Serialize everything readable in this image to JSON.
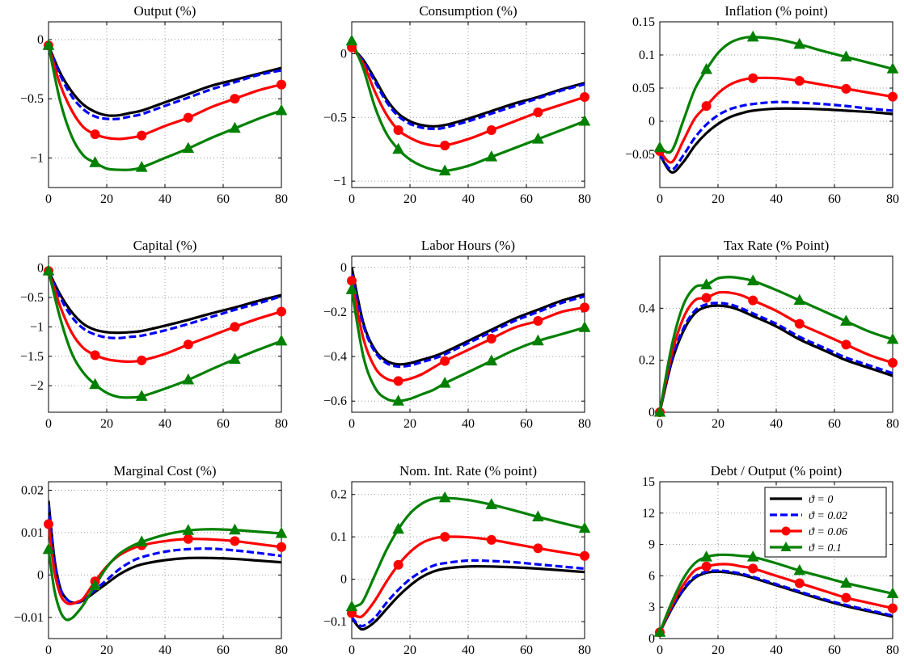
{
  "colors": {
    "s0": "#000000",
    "s1": "#0000ff",
    "s2": "#ff0000",
    "s3": "#008000"
  },
  "legend": [
    "ϑ = 0",
    "ϑ = 0.02",
    "ϑ = 0.06",
    "ϑ = 0.1"
  ],
  "chart_data": [
    {
      "type": "line",
      "title": "Output (%)",
      "xlim": [
        0,
        80
      ],
      "ylim": [
        -1.25,
        0.15
      ],
      "xticks": [
        0,
        20,
        40,
        60,
        80
      ],
      "yticks": [
        0,
        -0.5,
        -1
      ],
      "yticklabels": [
        "0",
        "−0.5",
        "−1"
      ],
      "x": [
        0,
        4,
        8,
        12,
        16,
        20,
        24,
        28,
        32,
        40,
        48,
        56,
        64,
        72,
        80
      ],
      "series": [
        {
          "name": "ϑ = 0",
          "values": [
            -0.05,
            -0.28,
            -0.44,
            -0.55,
            -0.61,
            -0.64,
            -0.64,
            -0.62,
            -0.6,
            -0.53,
            -0.46,
            -0.39,
            -0.34,
            -0.29,
            -0.24
          ]
        },
        {
          "name": "ϑ = 0.02",
          "values": [
            -0.05,
            -0.3,
            -0.48,
            -0.59,
            -0.65,
            -0.67,
            -0.67,
            -0.65,
            -0.63,
            -0.56,
            -0.49,
            -0.42,
            -0.36,
            -0.3,
            -0.26
          ]
        },
        {
          "name": "ϑ = 0.06",
          "values": [
            -0.05,
            -0.38,
            -0.6,
            -0.74,
            -0.8,
            -0.83,
            -0.84,
            -0.83,
            -0.81,
            -0.73,
            -0.66,
            -0.57,
            -0.5,
            -0.43,
            -0.38
          ]
        },
        {
          "name": "ϑ = 0.1",
          "values": [
            -0.05,
            -0.52,
            -0.82,
            -0.98,
            -1.04,
            -1.09,
            -1.1,
            -1.1,
            -1.08,
            -1.0,
            -0.92,
            -0.83,
            -0.75,
            -0.67,
            -0.6
          ]
        }
      ]
    },
    {
      "type": "line",
      "title": "Consumption (%)",
      "xlim": [
        0,
        80
      ],
      "ylim": [
        -1.05,
        0.25
      ],
      "xticks": [
        0,
        20,
        40,
        60,
        80
      ],
      "yticks": [
        0,
        -0.5,
        -1
      ],
      "yticklabels": [
        "0",
        "−0.5",
        "−1"
      ],
      "x": [
        0,
        4,
        8,
        12,
        16,
        20,
        24,
        28,
        32,
        40,
        48,
        56,
        64,
        72,
        80
      ],
      "series": [
        {
          "name": "ϑ = 0",
          "values": [
            0.05,
            -0.05,
            -0.2,
            -0.36,
            -0.47,
            -0.53,
            -0.56,
            -0.57,
            -0.56,
            -0.51,
            -0.45,
            -0.39,
            -0.34,
            -0.28,
            -0.23
          ]
        },
        {
          "name": "ϑ = 0.02",
          "values": [
            0.05,
            -0.06,
            -0.22,
            -0.38,
            -0.49,
            -0.55,
            -0.58,
            -0.59,
            -0.58,
            -0.53,
            -0.47,
            -0.41,
            -0.35,
            -0.29,
            -0.24
          ]
        },
        {
          "name": "ϑ = 0.06",
          "values": [
            0.05,
            -0.08,
            -0.3,
            -0.48,
            -0.6,
            -0.66,
            -0.7,
            -0.72,
            -0.72,
            -0.67,
            -0.6,
            -0.53,
            -0.46,
            -0.4,
            -0.34
          ]
        },
        {
          "name": "ϑ = 0.1",
          "values": [
            0.1,
            -0.12,
            -0.42,
            -0.63,
            -0.75,
            -0.83,
            -0.88,
            -0.91,
            -0.92,
            -0.88,
            -0.81,
            -0.74,
            -0.67,
            -0.6,
            -0.53
          ]
        }
      ]
    },
    {
      "type": "line",
      "title": "Inflation (% point)",
      "xlim": [
        0,
        80
      ],
      "ylim": [
        -0.1,
        0.15
      ],
      "xticks": [
        0,
        20,
        40,
        60,
        80
      ],
      "yticks": [
        0.15,
        0.1,
        0.05,
        0,
        -0.05
      ],
      "yticklabels": [
        "0.15",
        "0.1",
        "0.05",
        "0",
        "−0.05"
      ],
      "x": [
        0,
        4,
        8,
        12,
        16,
        20,
        24,
        28,
        32,
        40,
        48,
        56,
        64,
        72,
        80
      ],
      "series": [
        {
          "name": "ϑ = 0",
          "values": [
            -0.05,
            -0.077,
            -0.062,
            -0.037,
            -0.018,
            -0.004,
            0.006,
            0.012,
            0.016,
            0.019,
            0.019,
            0.018,
            0.016,
            0.014,
            0.011
          ]
        },
        {
          "name": "ϑ = 0.02",
          "values": [
            -0.05,
            -0.073,
            -0.052,
            -0.025,
            -0.005,
            0.009,
            0.018,
            0.023,
            0.026,
            0.029,
            0.028,
            0.026,
            0.023,
            0.019,
            0.016
          ]
        },
        {
          "name": "ϑ = 0.06",
          "values": [
            -0.045,
            -0.062,
            -0.03,
            0.004,
            0.023,
            0.042,
            0.055,
            0.062,
            0.065,
            0.065,
            0.061,
            0.055,
            0.049,
            0.043,
            0.037
          ]
        },
        {
          "name": "ϑ = 0.1",
          "values": [
            -0.04,
            -0.045,
            0.0,
            0.048,
            0.078,
            0.103,
            0.118,
            0.125,
            0.127,
            0.124,
            0.116,
            0.106,
            0.097,
            0.088,
            0.079
          ]
        }
      ]
    },
    {
      "type": "line",
      "title": "Capital (%)",
      "xlim": [
        0,
        80
      ],
      "ylim": [
        -2.45,
        0.2
      ],
      "xticks": [
        0,
        20,
        40,
        60,
        80
      ],
      "yticks": [
        0,
        -0.5,
        -1,
        -1.5,
        -2
      ],
      "yticklabels": [
        "0",
        "−0.5",
        "−1",
        "−1.5",
        "−2"
      ],
      "x": [
        0,
        4,
        8,
        12,
        16,
        20,
        24,
        28,
        32,
        40,
        48,
        56,
        64,
        72,
        80
      ],
      "series": [
        {
          "name": "ϑ = 0",
          "values": [
            -0.05,
            -0.45,
            -0.75,
            -0.95,
            -1.05,
            -1.09,
            -1.1,
            -1.09,
            -1.07,
            -0.98,
            -0.88,
            -0.77,
            -0.67,
            -0.56,
            -0.46
          ]
        },
        {
          "name": "ϑ = 0.02",
          "values": [
            -0.05,
            -0.5,
            -0.83,
            -1.03,
            -1.13,
            -1.18,
            -1.19,
            -1.17,
            -1.15,
            -1.06,
            -0.95,
            -0.83,
            -0.71,
            -0.6,
            -0.48
          ]
        },
        {
          "name": "ϑ = 0.06",
          "values": [
            -0.05,
            -0.65,
            -1.1,
            -1.36,
            -1.48,
            -1.55,
            -1.58,
            -1.59,
            -1.57,
            -1.46,
            -1.3,
            -1.15,
            -1.0,
            -0.86,
            -0.74
          ]
        },
        {
          "name": "ϑ = 0.1",
          "values": [
            -0.05,
            -0.85,
            -1.45,
            -1.78,
            -1.98,
            -2.12,
            -2.19,
            -2.2,
            -2.18,
            -2.05,
            -1.9,
            -1.72,
            -1.55,
            -1.39,
            -1.24
          ]
        }
      ]
    },
    {
      "type": "line",
      "title": "Labor Hours (%)",
      "xlim": [
        0,
        80
      ],
      "ylim": [
        -0.65,
        0.05
      ],
      "xticks": [
        0,
        20,
        40,
        60,
        80
      ],
      "yticks": [
        0,
        -0.2,
        -0.4,
        -0.6
      ],
      "yticklabels": [
        "0",
        "−0.2",
        "−0.4",
        "−0.6"
      ],
      "x": [
        0,
        4,
        8,
        12,
        16,
        20,
        24,
        28,
        32,
        40,
        48,
        56,
        64,
        72,
        80
      ],
      "series": [
        {
          "name": "ϑ = 0",
          "values": [
            0.0,
            -0.25,
            -0.37,
            -0.42,
            -0.435,
            -0.43,
            -0.415,
            -0.4,
            -0.38,
            -0.33,
            -0.28,
            -0.23,
            -0.19,
            -0.15,
            -0.12
          ]
        },
        {
          "name": "ϑ = 0.02",
          "values": [
            -0.03,
            -0.26,
            -0.38,
            -0.43,
            -0.445,
            -0.44,
            -0.425,
            -0.41,
            -0.39,
            -0.34,
            -0.29,
            -0.24,
            -0.2,
            -0.16,
            -0.13
          ]
        },
        {
          "name": "ϑ = 0.06",
          "values": [
            -0.06,
            -0.32,
            -0.45,
            -0.5,
            -0.51,
            -0.5,
            -0.48,
            -0.45,
            -0.42,
            -0.37,
            -0.32,
            -0.27,
            -0.24,
            -0.2,
            -0.18
          ]
        },
        {
          "name": "ϑ = 0.1",
          "values": [
            -0.1,
            -0.4,
            -0.54,
            -0.59,
            -0.6,
            -0.59,
            -0.57,
            -0.55,
            -0.52,
            -0.47,
            -0.42,
            -0.37,
            -0.33,
            -0.3,
            -0.27
          ]
        }
      ]
    },
    {
      "type": "line",
      "title": "Tax Rate (% Point)",
      "xlim": [
        0,
        80
      ],
      "ylim": [
        0,
        0.6
      ],
      "xticks": [
        0,
        20,
        40,
        60,
        80
      ],
      "yticks": [
        0,
        0.2,
        0.4
      ],
      "yticklabels": [
        "0",
        "0.2",
        "0.4"
      ],
      "x": [
        0,
        4,
        8,
        12,
        16,
        20,
        24,
        28,
        32,
        40,
        48,
        56,
        64,
        72,
        80
      ],
      "series": [
        {
          "name": "ϑ = 0",
          "values": [
            0.0,
            0.19,
            0.31,
            0.38,
            0.405,
            0.41,
            0.405,
            0.39,
            0.37,
            0.33,
            0.28,
            0.24,
            0.2,
            0.17,
            0.14
          ]
        },
        {
          "name": "ϑ = 0.02",
          "values": [
            0.0,
            0.2,
            0.32,
            0.39,
            0.415,
            0.42,
            0.415,
            0.4,
            0.38,
            0.34,
            0.29,
            0.25,
            0.21,
            0.18,
            0.15
          ]
        },
        {
          "name": "ϑ = 0.06",
          "values": [
            0.0,
            0.22,
            0.36,
            0.43,
            0.44,
            0.46,
            0.46,
            0.45,
            0.43,
            0.39,
            0.34,
            0.3,
            0.26,
            0.22,
            0.19
          ]
        },
        {
          "name": "ϑ = 0.1",
          "values": [
            0.0,
            0.25,
            0.41,
            0.48,
            0.49,
            0.515,
            0.52,
            0.515,
            0.505,
            0.47,
            0.43,
            0.39,
            0.35,
            0.31,
            0.28
          ]
        }
      ]
    },
    {
      "type": "line",
      "title": "Marginal Cost (%)",
      "xlim": [
        0,
        80
      ],
      "ylim": [
        -0.015,
        0.022
      ],
      "xticks": [
        0,
        20,
        40,
        60,
        80
      ],
      "yticks": [
        0.02,
        0.01,
        0,
        -0.01
      ],
      "yticklabels": [
        "0.02",
        "0.01",
        "0",
        "−0.01"
      ],
      "x": [
        0,
        2,
        4,
        6,
        8,
        10,
        12,
        16,
        20,
        24,
        28,
        32,
        40,
        48,
        56,
        64,
        72,
        80
      ],
      "series": [
        {
          "name": "ϑ = 0",
          "values": [
            0.0175,
            0.004,
            -0.003,
            -0.0055,
            -0.0065,
            -0.0065,
            -0.006,
            -0.004,
            -0.002,
            0.0,
            0.0015,
            0.0025,
            0.0035,
            0.004,
            0.004,
            0.0038,
            0.0034,
            0.003
          ]
        },
        {
          "name": "ϑ = 0.02",
          "values": [
            0.0165,
            0.0035,
            -0.003,
            -0.0055,
            -0.0065,
            -0.0065,
            -0.006,
            -0.0035,
            -0.0012,
            0.0012,
            0.003,
            0.0042,
            0.0055,
            0.0061,
            0.0062,
            0.0058,
            0.0052,
            0.0045
          ]
        },
        {
          "name": "ϑ = 0.06",
          "values": [
            0.012,
            0.001,
            -0.0045,
            -0.0065,
            -0.0068,
            -0.0063,
            -0.0055,
            -0.0015,
            0.002,
            0.0045,
            0.006,
            0.007,
            0.008,
            0.0085,
            0.0084,
            0.008,
            0.0073,
            0.0066
          ]
        },
        {
          "name": "ϑ = 0.1",
          "values": [
            0.006,
            -0.0035,
            -0.0085,
            -0.0105,
            -0.0102,
            -0.0088,
            -0.007,
            -0.0025,
            0.0018,
            0.0048,
            0.0066,
            0.0078,
            0.0095,
            0.0105,
            0.0108,
            0.0106,
            0.0102,
            0.0098
          ]
        }
      ]
    },
    {
      "type": "line",
      "title": "Nom. Int. Rate (% point)",
      "xlim": [
        0,
        80
      ],
      "ylim": [
        -0.14,
        0.23
      ],
      "xticks": [
        0,
        20,
        40,
        60,
        80
      ],
      "yticks": [
        0.2,
        0.1,
        0,
        -0.1
      ],
      "yticklabels": [
        "0.2",
        "0.1",
        "0",
        "−0.1"
      ],
      "x": [
        0,
        2,
        4,
        8,
        12,
        16,
        20,
        24,
        28,
        32,
        40,
        48,
        56,
        64,
        72,
        80
      ],
      "series": [
        {
          "name": "ϑ = 0",
          "values": [
            -0.09,
            -0.11,
            -0.118,
            -0.1,
            -0.07,
            -0.04,
            -0.015,
            0.005,
            0.018,
            0.025,
            0.03,
            0.03,
            0.028,
            0.025,
            0.021,
            0.017
          ]
        },
        {
          "name": "ϑ = 0.02",
          "values": [
            -0.09,
            -0.105,
            -0.11,
            -0.09,
            -0.055,
            -0.025,
            0.0,
            0.018,
            0.032,
            0.038,
            0.044,
            0.043,
            0.04,
            0.035,
            0.03,
            0.025
          ]
        },
        {
          "name": "ϑ = 0.06",
          "values": [
            -0.08,
            -0.088,
            -0.085,
            -0.05,
            -0.005,
            0.034,
            0.064,
            0.085,
            0.096,
            0.1,
            0.099,
            0.093,
            0.083,
            0.073,
            0.064,
            0.055
          ]
        },
        {
          "name": "ϑ = 0.1",
          "values": [
            -0.065,
            -0.062,
            -0.05,
            0.01,
            0.07,
            0.118,
            0.155,
            0.178,
            0.19,
            0.192,
            0.187,
            0.176,
            0.162,
            0.147,
            0.133,
            0.12
          ]
        }
      ]
    },
    {
      "type": "line",
      "title": "Debt / Output (% point)",
      "xlim": [
        0,
        80
      ],
      "ylim": [
        0,
        15
      ],
      "xticks": [
        0,
        20,
        40,
        60,
        80
      ],
      "yticks": [
        15,
        12,
        9,
        6,
        3,
        0
      ],
      "yticklabels": [
        "15",
        "12",
        "9",
        "6",
        "3",
        "0"
      ],
      "x": [
        0,
        4,
        8,
        12,
        16,
        20,
        24,
        28,
        32,
        40,
        48,
        56,
        64,
        72,
        80
      ],
      "series": [
        {
          "name": "ϑ = 0",
          "values": [
            0.6,
            2.8,
            4.6,
            5.8,
            6.3,
            6.4,
            6.3,
            6.1,
            5.8,
            5.1,
            4.4,
            3.7,
            3.1,
            2.6,
            2.1
          ]
        },
        {
          "name": "ϑ = 0.02",
          "values": [
            0.6,
            2.9,
            4.7,
            5.9,
            6.4,
            6.5,
            6.4,
            6.2,
            5.9,
            5.2,
            4.5,
            3.8,
            3.2,
            2.7,
            2.2
          ]
        },
        {
          "name": "ϑ = 0.06",
          "values": [
            0.6,
            3.1,
            5.1,
            6.5,
            6.9,
            7.1,
            7.1,
            6.9,
            6.7,
            6.0,
            5.3,
            4.6,
            3.9,
            3.4,
            2.9
          ]
        },
        {
          "name": "ϑ = 0.1",
          "values": [
            0.6,
            3.4,
            5.7,
            7.2,
            7.8,
            8.0,
            8.0,
            7.9,
            7.8,
            7.2,
            6.5,
            5.9,
            5.3,
            4.8,
            4.3
          ]
        }
      ]
    }
  ]
}
